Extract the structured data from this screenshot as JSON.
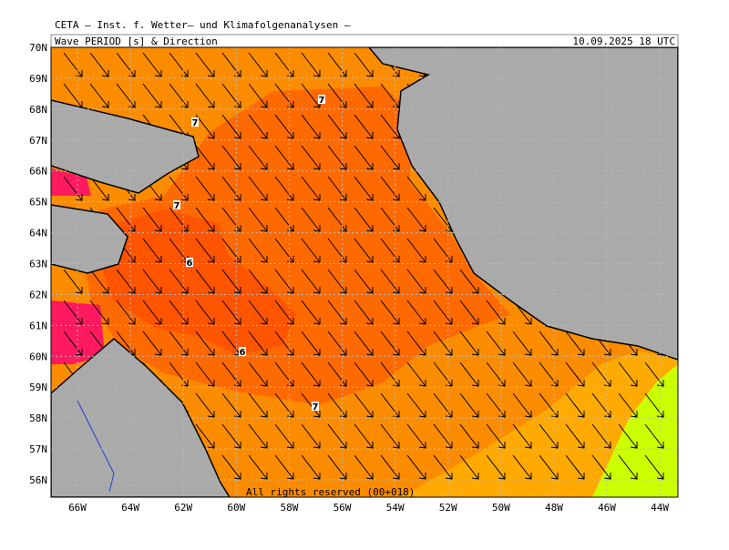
{
  "header": {
    "title": "CETA – Inst. f. Wetter– und Klimafolgenanalysen –",
    "product": "Wave PERIOD [s] & Direction",
    "valid_time": "10.09.2025 18 UTC"
  },
  "map": {
    "lat_labels": [
      "70N",
      "69N",
      "68N",
      "67N",
      "66N",
      "65N",
      "64N",
      "63N",
      "62N",
      "61N",
      "60N",
      "59N",
      "58N",
      "57N",
      "56N"
    ],
    "lon_labels": [
      "66W",
      "64W",
      "62W",
      "60W",
      "58W",
      "56W",
      "54W",
      "52W",
      "50W",
      "48W",
      "46W",
      "44W"
    ],
    "contour_labels": [
      7,
      7,
      7,
      6,
      6,
      7
    ],
    "copyright": "All rights reserved (00+018)"
  }
}
